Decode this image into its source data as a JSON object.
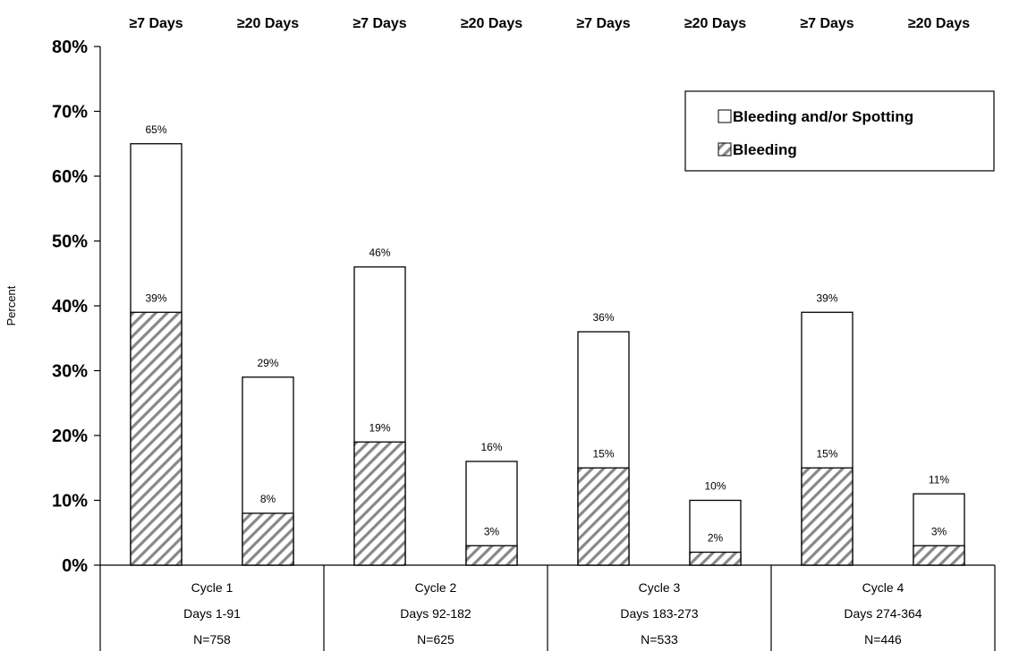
{
  "chart_data": {
    "type": "bar",
    "ylabel": "Percent",
    "ylim": [
      0,
      80
    ],
    "yticks": [
      "0%",
      "10%",
      "20%",
      "30%",
      "40%",
      "50%",
      "60%",
      "70%",
      "80%"
    ],
    "grid": false,
    "legend_position": "top-right",
    "legend": [
      {
        "label": "Bleeding and/or Spotting",
        "symbol": "☐"
      },
      {
        "label": "Bleeding",
        "symbol": "▨"
      }
    ],
    "series": [
      {
        "name": "Bleeding and/or Spotting",
        "fill": "white"
      },
      {
        "name": "Bleeding",
        "fill": "hatched"
      }
    ],
    "groups": [
      {
        "lines": [
          "Cycle 1",
          "Days 1-91",
          "N=758"
        ],
        "bars": [
          {
            "top_label": "≥7 Days",
            "total": 65,
            "bleeding": 39,
            "total_label": "65%",
            "bleeding_label": "39%"
          },
          {
            "top_label": "≥20 Days",
            "total": 29,
            "bleeding": 8,
            "total_label": "29%",
            "bleeding_label": "8%"
          }
        ]
      },
      {
        "lines": [
          "Cycle 2",
          "Days 92-182",
          "N=625"
        ],
        "bars": [
          {
            "top_label": "≥7 Days",
            "total": 46,
            "bleeding": 19,
            "total_label": "46%",
            "bleeding_label": "19%"
          },
          {
            "top_label": "≥20 Days",
            "total": 16,
            "bleeding": 3,
            "total_label": "16%",
            "bleeding_label": "3%"
          }
        ]
      },
      {
        "lines": [
          "Cycle 3",
          "Days 183-273",
          "N=533"
        ],
        "bars": [
          {
            "top_label": "≥7 Days",
            "total": 36,
            "bleeding": 15,
            "total_label": "36%",
            "bleeding_label": "15%"
          },
          {
            "top_label": "≥20 Days",
            "total": 10,
            "bleeding": 2,
            "total_label": "10%",
            "bleeding_label": "2%"
          }
        ]
      },
      {
        "lines": [
          "Cycle 4",
          "Days 274-364",
          "N=446"
        ],
        "bars": [
          {
            "top_label": "≥7 Days",
            "total": 39,
            "bleeding": 15,
            "total_label": "39%",
            "bleeding_label": "15%"
          },
          {
            "top_label": "≥20 Days",
            "total": 11,
            "bleeding": 3,
            "total_label": "11%",
            "bleeding_label": "3%"
          }
        ]
      }
    ]
  }
}
